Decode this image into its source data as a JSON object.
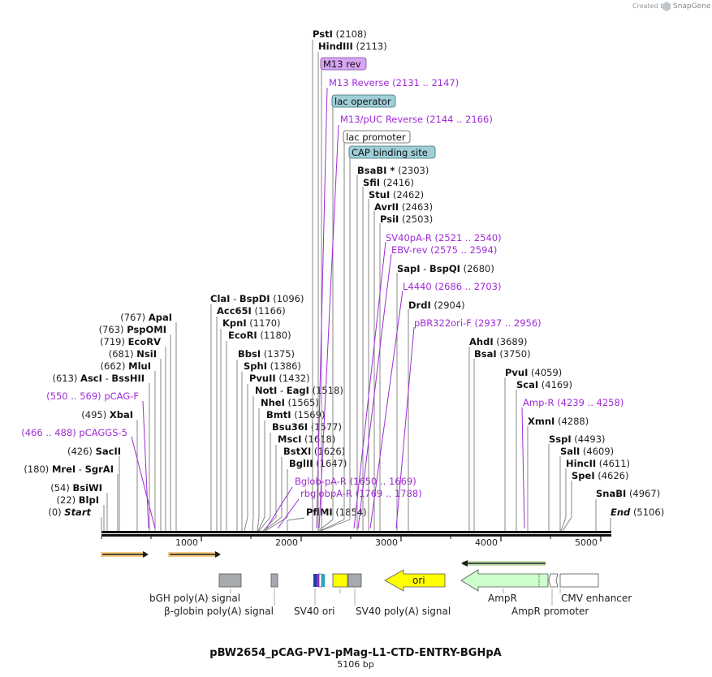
{
  "brand": {
    "created_by": "Created by",
    "name": "SnapGene"
  },
  "plasmid": {
    "name": "pBW2654_pCAG-PV1-pMag-L1-CTD-ENTRY-BGHpA",
    "length": "5106 bp"
  },
  "enzymes_left": [
    {
      "name": "ApaI",
      "pos": "(767)"
    },
    {
      "name": "PspOMI",
      "pos": "(763)"
    },
    {
      "name": "EcoRV",
      "pos": "(719)"
    },
    {
      "name": "NsiI",
      "pos": "(681)"
    },
    {
      "name": "MluI",
      "pos": "(662)"
    },
    {
      "name": "AscI",
      "sep": " - ",
      "name2": "BssHII",
      "pos": "(613)"
    },
    {
      "name": "XbaI",
      "pos": "(495)"
    },
    {
      "name": "SacII",
      "pos": "(426)"
    },
    {
      "name": "MreI",
      "sep": " - ",
      "name2": "SgrAI",
      "pos": "(180)"
    },
    {
      "name": "BsiWI",
      "pos": "(54)"
    },
    {
      "name": "BlpI",
      "pos": "(22)"
    },
    {
      "name": "Start",
      "pos": "(0)"
    }
  ],
  "primers_left": [
    {
      "name": "pCAG-F",
      "range": "(550 .. 569)"
    },
    {
      "name": "pCAGGS-5",
      "range": "(466 .. 488)"
    }
  ],
  "enzymes_mid": [
    {
      "name": "ClaI",
      "sep": " - ",
      "name2": "BspDI",
      "pos": "(1096)"
    },
    {
      "name": "Acc65I",
      "pos": "(1166)"
    },
    {
      "name": "KpnI",
      "pos": "(1170)"
    },
    {
      "name": "EcoRI",
      "pos": "(1180)"
    },
    {
      "name": "BbsI",
      "pos": "(1375)"
    },
    {
      "name": "SphI",
      "pos": "(1386)"
    },
    {
      "name": "PvuII",
      "pos": "(1432)"
    },
    {
      "name": "NotI",
      "sep": " - ",
      "name2": "EagI",
      "pos": "(1518)"
    },
    {
      "name": "NheI",
      "pos": "(1565)"
    },
    {
      "name": "BmtI",
      "pos": "(1569)"
    },
    {
      "name": "Bsu36I",
      "pos": "(1577)"
    },
    {
      "name": "MscI",
      "pos": "(1618)"
    },
    {
      "name": "BstXI",
      "pos": "(1626)"
    },
    {
      "name": "BglII",
      "pos": "(1647)"
    },
    {
      "name": "PflMI",
      "pos": "(1854)"
    }
  ],
  "primers_mid": [
    {
      "name": "Bglob-pA-R",
      "range": "(1650 .. 1669)"
    },
    {
      "name": "rbglobpA-R",
      "range": "(1769 .. 1788)"
    }
  ],
  "enzymes_top": [
    {
      "name": "PstI",
      "pos": "(2108)"
    },
    {
      "name": "HindIII",
      "pos": "(2113)"
    },
    {
      "name": "BsaBI *",
      "pos": "(2303)"
    },
    {
      "name": "SfiI",
      "pos": "(2416)"
    },
    {
      "name": "StuI",
      "pos": "(2462)"
    },
    {
      "name": "AvrII",
      "pos": "(2463)"
    },
    {
      "name": "PsiI",
      "pos": "(2503)"
    },
    {
      "name": "SapI",
      "sep": " - ",
      "name2": "BspQI",
      "pos": "(2680)"
    },
    {
      "name": "DrdI",
      "pos": "(2904)"
    }
  ],
  "primers_top": [
    {
      "name": "M13 Reverse",
      "range": "(2131 .. 2147)"
    },
    {
      "name": "M13/pUC Reverse",
      "range": "(2144 .. 2166)"
    },
    {
      "name": "SV40pA-R",
      "range": "(2521 .. 2540)"
    },
    {
      "name": "EBV-rev",
      "range": "(2575 .. 2594)"
    },
    {
      "name": "L4440",
      "range": "(2686 .. 2703)"
    },
    {
      "name": "pBR322ori-F",
      "range": "(2937 .. 2956)"
    }
  ],
  "boxed_features": [
    {
      "name": "M13 rev",
      "color": "#d9a4f5"
    },
    {
      "name": "lac operator",
      "color": "#9fcfd8"
    },
    {
      "name": "lac promoter",
      "color": "#ffffff"
    },
    {
      "name": "CAP binding site",
      "color": "#9fcfd8"
    }
  ],
  "enzymes_right": [
    {
      "name": "AhdI",
      "pos": "(3689)"
    },
    {
      "name": "BsaI",
      "pos": "(3750)"
    },
    {
      "name": "PvuI",
      "pos": "(4059)"
    },
    {
      "name": "ScaI",
      "pos": "(4169)"
    },
    {
      "name": "XmnI",
      "pos": "(4288)"
    },
    {
      "name": "SspI",
      "pos": "(4493)"
    },
    {
      "name": "SalI",
      "pos": "(4609)"
    },
    {
      "name": "HincII",
      "pos": "(4611)"
    },
    {
      "name": "SpeI",
      "pos": "(4626)"
    },
    {
      "name": "SnaBI",
      "pos": "(4967)"
    },
    {
      "name": "End",
      "pos": "(5106)"
    }
  ],
  "primers_right": [
    {
      "name": "Amp-R",
      "range": "(4239 .. 4258)"
    }
  ],
  "ruler": {
    "ticks": [
      "1000",
      "2000",
      "3000",
      "4000",
      "5000"
    ]
  },
  "features": {
    "ori": "ori",
    "bgh": "bGH poly(A) signal",
    "bglobin": "β-globin poly(A) signal",
    "sv40ori": "SV40 ori",
    "sv40pa": "SV40 poly(A) signal",
    "ampr": "AmpR",
    "amprprom": "AmpR promoter",
    "cmv": "CMV enhancer"
  },
  "colors": {
    "primer": "#a02bd6",
    "orf_arrow": "#f2a01e",
    "ori": "#ffff00",
    "ampr": "#ccffcc",
    "polya": "#a6a9ad",
    "sv40": "#ffff00"
  }
}
